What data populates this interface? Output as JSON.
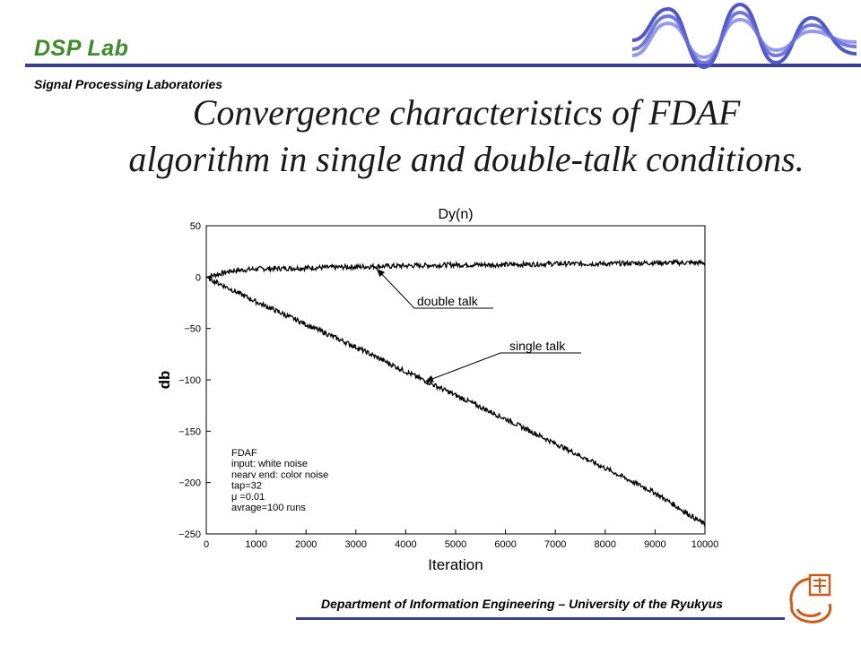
{
  "header": {
    "lab_name": "DSP Lab",
    "lab_subtitle": "Signal Processing Laboratories",
    "accent_color": "#3a3f8f",
    "lab_color": "#3d8b2a"
  },
  "title": {
    "line1": "Convergence characteristics of FDAF",
    "line2": "algorithm in single and double-talk conditions."
  },
  "chart_data": {
    "type": "line",
    "title": "Dy(n)",
    "xlabel": "Iteration",
    "ylabel": "db",
    "xlim": [
      0,
      10000
    ],
    "ylim": [
      -250,
      50
    ],
    "xticks": [
      0,
      1000,
      2000,
      3000,
      4000,
      5000,
      6000,
      7000,
      8000,
      9000,
      10000
    ],
    "yticks": [
      50,
      0,
      -50,
      -100,
      -150,
      -200,
      -250
    ],
    "x": [
      0,
      500,
      1000,
      2000,
      3000,
      4000,
      5000,
      6000,
      7000,
      8000,
      9000,
      10000
    ],
    "series": [
      {
        "name": "double talk",
        "values": [
          0,
          6,
          8,
          9,
          10,
          11,
          12,
          12,
          13,
          13,
          14,
          14
        ]
      },
      {
        "name": "single talk",
        "values": [
          0,
          -12,
          -24,
          -46,
          -68,
          -92,
          -115,
          -138,
          -162,
          -186,
          -210,
          -241
        ]
      }
    ],
    "annotations": [
      {
        "text": "double talk",
        "target": "double talk"
      },
      {
        "text": "single talk",
        "target": "single talk"
      }
    ],
    "info_box": [
      "FDAF",
      "input: white noise",
      "nearv end: color noise",
      "tap=32",
      "μ =0.01",
      "avrage=100 runs"
    ],
    "grid": false
  },
  "footer": {
    "text": "Department of Information Engineering – University of the Ryukyus"
  },
  "icons": {
    "wave_logo": "sine-wave-logo-icon",
    "university_logo": "university-emblem-icon"
  }
}
